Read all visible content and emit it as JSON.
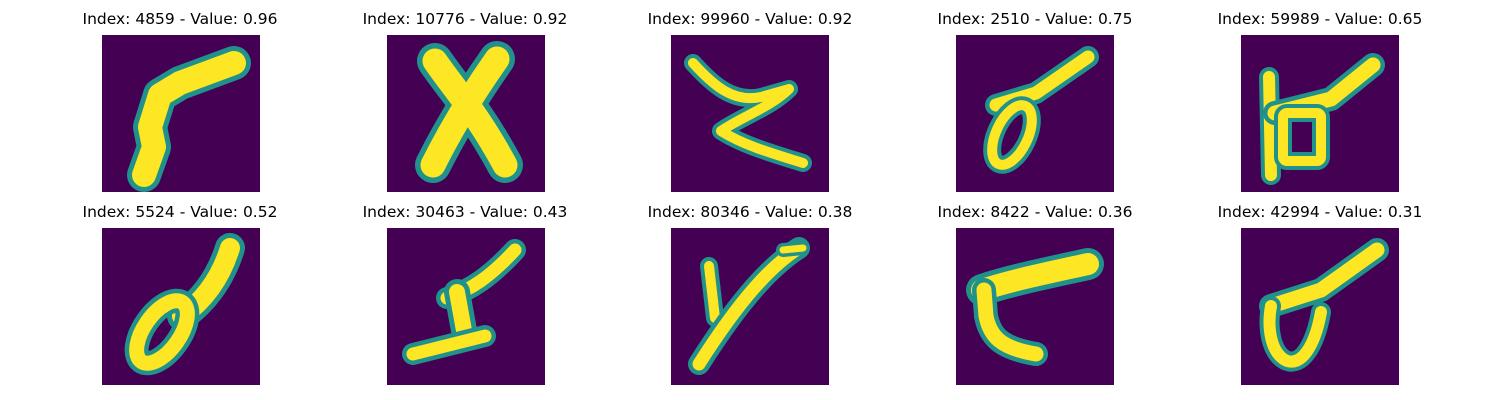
{
  "panels": [
    {
      "title": "Index: 4859 - Value: 0.96",
      "glyph": "handwritten-s-shape"
    },
    {
      "title": "Index: 10776 - Value: 0.92",
      "glyph": "handwritten-x-shape"
    },
    {
      "title": "Index: 99960 - Value: 0.92",
      "glyph": "handwritten-z-shape"
    },
    {
      "title": "Index: 2510 - Value: 0.75",
      "glyph": "handwritten-loop-diagonal"
    },
    {
      "title": "Index: 59989 - Value: 0.65",
      "glyph": "handwritten-box-shape"
    },
    {
      "title": "Index: 5524 - Value: 0.52",
      "glyph": "handwritten-loop-diagonal"
    },
    {
      "title": "Index: 30463 - Value: 0.43",
      "glyph": "handwritten-i-shape"
    },
    {
      "title": "Index: 80346 - Value: 0.38",
      "glyph": "handwritten-y-shape"
    },
    {
      "title": "Index: 8422 - Value: 0.36",
      "glyph": "handwritten-t-shape"
    },
    {
      "title": "Index: 42994 - Value: 0.31",
      "glyph": "handwritten-cup-shape"
    }
  ],
  "colors": {
    "background": "#440154",
    "edge": "#21918c",
    "stroke": "#fde725"
  }
}
